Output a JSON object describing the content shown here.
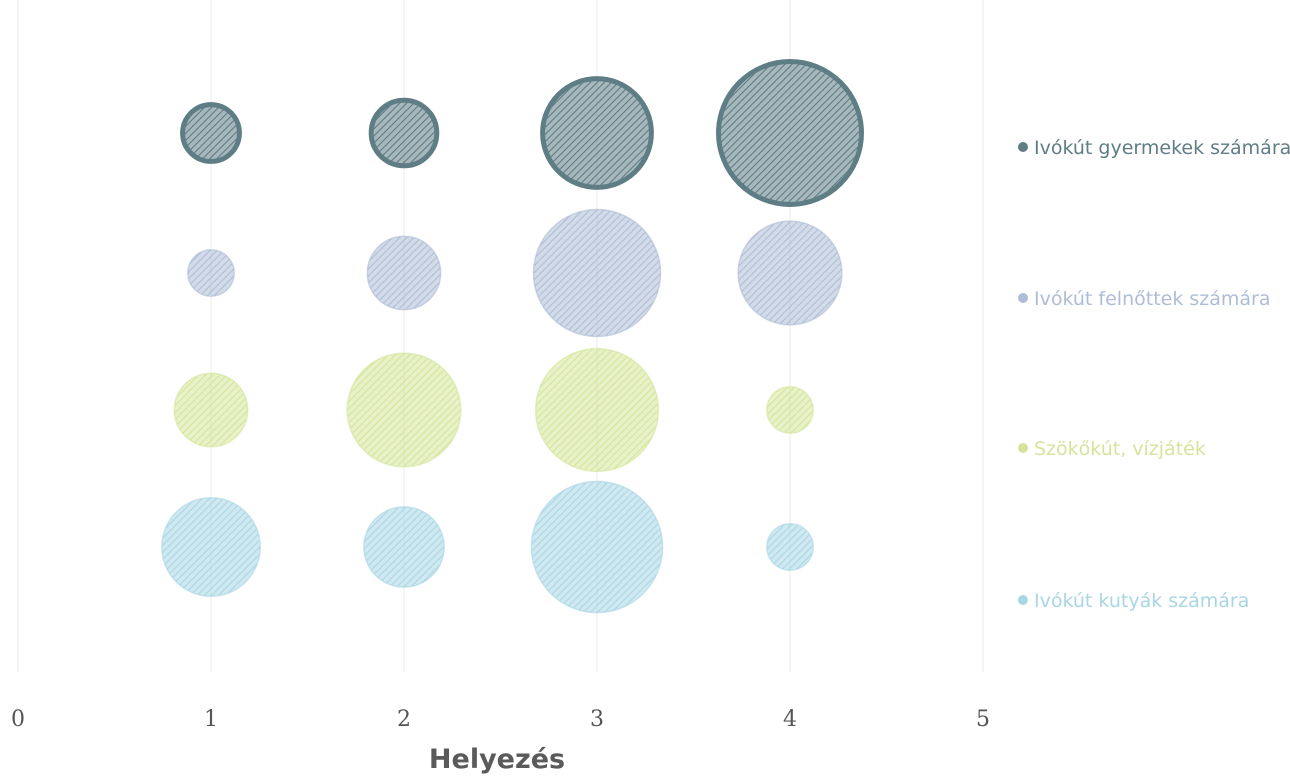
{
  "chart_data": {
    "type": "bubble",
    "xlabel": "Helyezés",
    "xlim": [
      0,
      5
    ],
    "x_ticks": [
      "0",
      "1",
      "2",
      "3",
      "4",
      "5"
    ],
    "grid": "vertical",
    "legend_position": "right",
    "series": [
      {
        "name": "Ivókút gyermekek számára",
        "color": "#5f7d85",
        "pattern": "hatched-outline",
        "points": [
          {
            "x": 1,
            "size": 3
          },
          {
            "x": 2,
            "size": 4
          },
          {
            "x": 3,
            "size": 11
          },
          {
            "x": 4,
            "size": 19
          }
        ]
      },
      {
        "name": "Ivókút felnőttek számára",
        "color": "#aebdd6",
        "pattern": "hatched",
        "points": [
          {
            "x": 1,
            "size": 2
          },
          {
            "x": 2,
            "size": 5
          },
          {
            "x": 3,
            "size": 15
          },
          {
            "x": 4,
            "size": 10
          }
        ]
      },
      {
        "name": "Szökőkút, vízjáték",
        "color": "#d4e59b",
        "pattern": "hatched",
        "points": [
          {
            "x": 1,
            "size": 5
          },
          {
            "x": 2,
            "size": 12
          },
          {
            "x": 3,
            "size": 14
          },
          {
            "x": 4,
            "size": 2
          }
        ]
      },
      {
        "name": "Ivókút kutyák számára",
        "color": "#a9d6e5",
        "pattern": "hatched",
        "points": [
          {
            "x": 1,
            "size": 9
          },
          {
            "x": 2,
            "size": 6
          },
          {
            "x": 3,
            "size": 16
          },
          {
            "x": 4,
            "size": 2
          }
        ]
      }
    ]
  }
}
